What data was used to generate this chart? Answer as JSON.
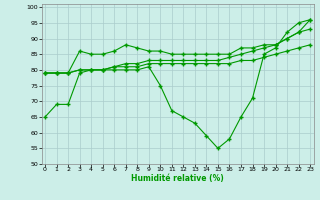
{
  "xlabel": "Humidité relative (%)",
  "background_color": "#cceee8",
  "grid_color": "#aacccc",
  "line_color": "#009900",
  "xlim": [
    -0.3,
    23.3
  ],
  "ylim": [
    50,
    101
  ],
  "yticks": [
    50,
    55,
    60,
    65,
    70,
    75,
    80,
    85,
    90,
    95,
    100
  ],
  "xticks": [
    0,
    1,
    2,
    3,
    4,
    5,
    6,
    7,
    8,
    9,
    10,
    11,
    12,
    13,
    14,
    15,
    16,
    17,
    18,
    19,
    20,
    21,
    22,
    23
  ],
  "series": [
    {
      "x": [
        0,
        1,
        2,
        3,
        4,
        5,
        6,
        7,
        8,
        9,
        10,
        11,
        12,
        13,
        14,
        15,
        16,
        17,
        18,
        19,
        20,
        21,
        22,
        23
      ],
      "y": [
        65,
        69,
        69,
        79,
        80,
        80,
        80,
        80,
        80,
        81,
        75,
        67,
        65,
        63,
        59,
        55,
        58,
        65,
        71,
        85,
        87,
        92,
        95,
        96
      ]
    },
    {
      "x": [
        0,
        1,
        2,
        3,
        4,
        5,
        6,
        7,
        8,
        9,
        10,
        11,
        12,
        13,
        14,
        15,
        16,
        17,
        18,
        19,
        20,
        21,
        22,
        23
      ],
      "y": [
        79,
        79,
        79,
        80,
        80,
        80,
        81,
        81,
        81,
        82,
        82,
        82,
        82,
        82,
        82,
        82,
        82,
        83,
        83,
        84,
        85,
        86,
        87,
        88
      ]
    },
    {
      "x": [
        0,
        1,
        2,
        3,
        4,
        5,
        6,
        7,
        8,
        9,
        10,
        11,
        12,
        13,
        14,
        15,
        16,
        17,
        18,
        19,
        20,
        21,
        22,
        23
      ],
      "y": [
        79,
        79,
        79,
        80,
        80,
        80,
        81,
        82,
        82,
        83,
        83,
        83,
        83,
        83,
        83,
        83,
        84,
        85,
        86,
        87,
        88,
        90,
        92,
        93
      ]
    },
    {
      "x": [
        0,
        1,
        2,
        3,
        4,
        5,
        6,
        7,
        8,
        9,
        10,
        11,
        12,
        13,
        14,
        15,
        16,
        17,
        18,
        19,
        20,
        21,
        22,
        23
      ],
      "y": [
        79,
        79,
        79,
        86,
        85,
        85,
        86,
        88,
        87,
        86,
        86,
        85,
        85,
        85,
        85,
        85,
        85,
        87,
        87,
        88,
        88,
        90,
        92,
        96
      ]
    }
  ]
}
